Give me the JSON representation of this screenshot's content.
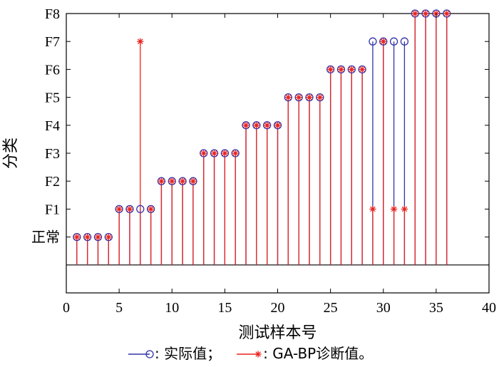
{
  "chart_data": {
    "type": "stem",
    "xlabel": "测试样本号",
    "ylabel": "分类",
    "xlim": [
      0,
      40
    ],
    "ylim": [
      -1,
      9
    ],
    "baseline": 0,
    "x_ticks": [
      0,
      5,
      10,
      15,
      20,
      25,
      30,
      35,
      40
    ],
    "y_ticks": [
      {
        "value": 1,
        "label": "正常"
      },
      {
        "value": 2,
        "label": "F1"
      },
      {
        "value": 3,
        "label": "F2"
      },
      {
        "value": 4,
        "label": "F3"
      },
      {
        "value": 5,
        "label": "F4"
      },
      {
        "value": 6,
        "label": "F5"
      },
      {
        "value": 7,
        "label": "F6"
      },
      {
        "value": 8,
        "label": "F7"
      },
      {
        "value": 9,
        "label": "F8"
      }
    ],
    "x": [
      1,
      2,
      3,
      4,
      5,
      6,
      7,
      8,
      9,
      10,
      11,
      12,
      13,
      14,
      15,
      16,
      17,
      18,
      19,
      20,
      21,
      22,
      23,
      24,
      25,
      26,
      27,
      28,
      29,
      30,
      31,
      32,
      33,
      34,
      35,
      36
    ],
    "series": [
      {
        "name": "实际值",
        "marker": "circle",
        "color": "#3333aa",
        "values": [
          1,
          1,
          1,
          1,
          2,
          2,
          2,
          2,
          3,
          3,
          3,
          3,
          4,
          4,
          4,
          4,
          5,
          5,
          5,
          5,
          6,
          6,
          6,
          6,
          7,
          7,
          7,
          7,
          8,
          8,
          8,
          8,
          9,
          9,
          9,
          9
        ]
      },
      {
        "name": "GA-BP诊断值",
        "marker": "star",
        "color": "#e8231f",
        "values": [
          1,
          1,
          1,
          1,
          2,
          2,
          8,
          2,
          3,
          3,
          3,
          3,
          4,
          4,
          4,
          4,
          5,
          5,
          5,
          5,
          6,
          6,
          6,
          6,
          7,
          7,
          7,
          7,
          2,
          8,
          2,
          2,
          9,
          9,
          9,
          9
        ]
      }
    ],
    "legend": {
      "placement": "bottom",
      "separator": ": ",
      "items": [
        {
          "series": 0,
          "suffix": "；"
        },
        {
          "series": 1,
          "suffix": "。"
        }
      ]
    }
  }
}
